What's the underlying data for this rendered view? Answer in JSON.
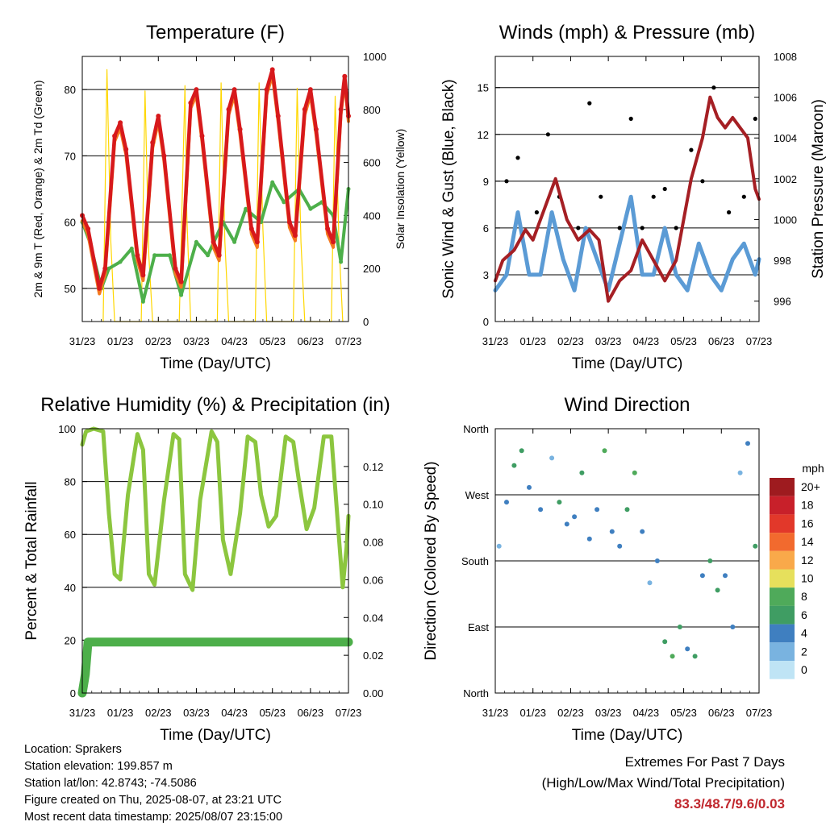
{
  "station": {
    "location": "Location: Sprakers",
    "elevation": "Station elevation: 199.857 m",
    "latlon": "Station lat/lon: 42.8743; -74.5086",
    "created": "Figure created on Thu, 2025-08-07, at 23:21 UTC",
    "recent": "Most recent data timestamp: 2025/08/07 23:15:00"
  },
  "extremes": {
    "title": "Extremes For Past 7 Days",
    "subtitle": "(High/Low/Max Wind/Total Precipitation)",
    "values": "83.3/48.7/9.6/0.03",
    "color": "#c0272d"
  },
  "colors": {
    "temp2m": "#d7191c",
    "temp9m": "#f47a20",
    "dewpoint": "#4daf4a",
    "solar": "#ffd700",
    "gust": "#000000",
    "wind": "#5b9bd5",
    "pressure": "#a51f24",
    "rh": "#8cc63f",
    "precip": "#4daf4a"
  },
  "chart_data": [
    {
      "type": "line",
      "title": "Temperature (F)",
      "xlabel": "Time (Day/UTC)",
      "ylabel": "2m & 9m T (Red, Orange) & 2m Td (Green)",
      "y2label": "Solar Insolation (Yellow)",
      "xticks": [
        "31/23",
        "01/23",
        "02/23",
        "03/23",
        "04/23",
        "05/23",
        "06/23",
        "07/23"
      ],
      "ylim": [
        45,
        85
      ],
      "yticks": [
        50,
        60,
        70,
        80
      ],
      "y2lim": [
        0,
        1000
      ],
      "y2ticks": [
        0,
        200,
        400,
        600,
        800,
        1000
      ],
      "series": [
        {
          "name": "2m T",
          "x": [
            0,
            0.15,
            0.45,
            0.6,
            0.85,
            1,
            1.15,
            1.45,
            1.6,
            1.85,
            2,
            2.15,
            2.45,
            2.6,
            2.85,
            3,
            3.15,
            3.45,
            3.6,
            3.85,
            4,
            4.15,
            4.45,
            4.6,
            4.85,
            5,
            5.15,
            5.45,
            5.6,
            5.85,
            6,
            6.15,
            6.45,
            6.6,
            6.8,
            6.9,
            7
          ],
          "y": [
            61,
            59,
            50,
            53,
            73,
            75,
            71,
            55,
            52,
            72,
            76,
            70,
            53,
            51,
            78,
            80,
            73,
            57,
            55,
            77,
            80,
            74,
            59,
            57,
            80,
            83,
            76,
            60,
            58,
            77,
            80,
            74,
            59,
            57,
            77,
            82,
            76
          ]
        },
        {
          "name": "Dewpoint",
          "x": [
            0,
            0.2,
            0.5,
            0.7,
            1,
            1.3,
            1.6,
            1.9,
            2.3,
            2.6,
            3,
            3.3,
            3.7,
            4,
            4.3,
            4.7,
            5,
            5.3,
            5.7,
            6,
            6.3,
            6.6,
            6.8,
            7
          ],
          "y": [
            60,
            57,
            50,
            53,
            54,
            56,
            48,
            55,
            55,
            49,
            57,
            55,
            60,
            57,
            62,
            60,
            66,
            63,
            65,
            62,
            63,
            61,
            54,
            65
          ]
        },
        {
          "name": "Solar",
          "x": [
            0.55,
            0.65,
            0.75,
            0.85,
            1.55,
            1.65,
            1.75,
            1.85,
            2.55,
            2.7,
            2.75,
            2.85,
            3.55,
            3.65,
            3.75,
            3.85,
            4.55,
            4.65,
            4.75,
            4.85,
            5.55,
            5.65,
            5.75,
            5.85,
            6.55,
            6.65,
            6.75,
            6.85
          ],
          "y": [
            0,
            950,
            300,
            0,
            0,
            870,
            250,
            0,
            0,
            890,
            400,
            0,
            0,
            900,
            300,
            0,
            0,
            900,
            350,
            0,
            0,
            880,
            300,
            0,
            0,
            850,
            300,
            0
          ]
        }
      ]
    },
    {
      "type": "line",
      "title": "Winds (mph) & Pressure (mb)",
      "xlabel": "Time (Day/UTC)",
      "ylabel": "Sonic Wind & Gust (Blue, Black)",
      "y2label": "Station Pressure (Maroon)",
      "xticks": [
        "31/23",
        "01/23",
        "02/23",
        "03/23",
        "04/23",
        "05/23",
        "06/23",
        "07/23"
      ],
      "ylim": [
        0,
        17
      ],
      "yticks": [
        0,
        3,
        6,
        9,
        12,
        15
      ],
      "y2lim": [
        995,
        1008
      ],
      "y2ticks": [
        996,
        998,
        1000,
        1002,
        1004,
        1006,
        1008
      ],
      "series": [
        {
          "name": "Pressure",
          "x": [
            0,
            0.2,
            0.5,
            0.8,
            1,
            1.3,
            1.6,
            1.9,
            2.2,
            2.5,
            2.75,
            3,
            3.3,
            3.6,
            3.9,
            4.2,
            4.5,
            4.8,
            5.2,
            5.5,
            5.7,
            5.9,
            6.1,
            6.3,
            6.5,
            6.7,
            6.9,
            7
          ],
          "y": [
            997,
            998,
            998.5,
            999.5,
            999,
            1000.5,
            1002,
            1000,
            999,
            999.5,
            999,
            996,
            997,
            997.5,
            999,
            998,
            997,
            998,
            1002,
            1004,
            1006,
            1005,
            1004.5,
            1005,
            1004.5,
            1004,
            1001.5,
            1001
          ]
        },
        {
          "name": "Gust",
          "x": [
            0.3,
            0.6,
            1.1,
            1.4,
            1.7,
            2.2,
            2.5,
            2.8,
            3.3,
            3.6,
            3.9,
            4.2,
            4.5,
            4.8,
            5.2,
            5.5,
            5.8,
            6.2,
            6.6,
            6.9
          ],
          "y": [
            9,
            10.5,
            7,
            12,
            8,
            6,
            14,
            8,
            6,
            13,
            6,
            8,
            8.5,
            6,
            11,
            9,
            15,
            7,
            8,
            13
          ]
        },
        {
          "name": "Wind",
          "x": [
            0,
            0.3,
            0.6,
            0.9,
            1.2,
            1.5,
            1.8,
            2.1,
            2.4,
            2.7,
            3,
            3.3,
            3.6,
            3.9,
            4.2,
            4.5,
            4.8,
            5.1,
            5.4,
            5.7,
            6,
            6.3,
            6.6,
            6.9,
            7
          ],
          "y": [
            2,
            3,
            7,
            3,
            3,
            7,
            4,
            2,
            6,
            4,
            2,
            5,
            8,
            3,
            3,
            6,
            3,
            2,
            5,
            3,
            2,
            4,
            5,
            3,
            4
          ]
        }
      ]
    },
    {
      "type": "line",
      "title": "Relative Humidity (%) & Precipitation (in)",
      "xlabel": "Time (Day/UTC)",
      "ylabel": "Percent & Total Rainfall",
      "xticks": [
        "31/23",
        "01/23",
        "02/23",
        "03/23",
        "04/23",
        "05/23",
        "06/23",
        "07/23"
      ],
      "ylim": [
        0,
        100
      ],
      "yticks": [
        0,
        20,
        40,
        60,
        80,
        100
      ],
      "y2lim": [
        0,
        0.14
      ],
      "y2ticks": [
        "0.00",
        "0.02",
        "0.04",
        "0.06",
        "0.08",
        "0.10",
        "0.12"
      ],
      "series": [
        {
          "name": "RH",
          "x": [
            0,
            0.1,
            0.3,
            0.55,
            0.7,
            0.85,
            1,
            1.2,
            1.45,
            1.6,
            1.75,
            1.9,
            2.15,
            2.4,
            2.55,
            2.7,
            2.9,
            3.1,
            3.4,
            3.55,
            3.7,
            3.9,
            4.15,
            4.35,
            4.55,
            4.7,
            4.9,
            5.1,
            5.35,
            5.55,
            5.7,
            5.9,
            6.1,
            6.35,
            6.55,
            6.7,
            6.85,
            6.95,
            7
          ],
          "y": [
            94,
            99,
            100,
            99,
            68,
            45,
            43,
            75,
            98,
            92,
            45,
            41,
            73,
            98,
            96,
            45,
            39,
            73,
            99,
            95,
            58,
            45,
            68,
            97,
            95,
            75,
            63,
            67,
            97,
            95,
            80,
            62,
            70,
            97,
            97,
            68,
            40,
            55,
            67
          ]
        },
        {
          "name": "Precipitation",
          "x": [
            0,
            0.08,
            0.15,
            7
          ],
          "y": [
            0,
            0.01,
            0.027,
            0.027
          ]
        }
      ]
    },
    {
      "type": "scatter",
      "title": "Wind Direction",
      "xlabel": "Time (Day/UTC)",
      "ylabel": "Direction (Colored By Speed)",
      "xticks": [
        "31/23",
        "01/23",
        "02/23",
        "03/23",
        "04/23",
        "05/23",
        "06/23",
        "07/23"
      ],
      "yticks": [
        "North",
        "East",
        "South",
        "West",
        "North"
      ],
      "ylim": [
        0,
        360
      ],
      "legend_title": "mph",
      "legend_labels": [
        "20+",
        "18",
        "16",
        "14",
        "12",
        "10",
        "8",
        "6",
        "4",
        "2",
        "0"
      ],
      "legend_colors": [
        "#9e1b1f",
        "#c8202a",
        "#e2382a",
        "#f26a2e",
        "#f9a94a",
        "#e6e05c",
        "#4faa5a",
        "#3f9d63",
        "#3f7fc0",
        "#79b3e0",
        "#bfe4f5"
      ],
      "series": [
        {
          "name": "Direction",
          "x": [
            0.1,
            0.3,
            0.5,
            0.7,
            0.9,
            1.2,
            1.5,
            1.7,
            1.9,
            2.1,
            2.3,
            2.5,
            2.7,
            2.9,
            3.1,
            3.3,
            3.5,
            3.7,
            3.9,
            4.1,
            4.3,
            4.5,
            4.7,
            4.9,
            5.1,
            5.3,
            5.5,
            5.7,
            5.9,
            6.1,
            6.3,
            6.5,
            6.7,
            6.9
          ],
          "y": [
            200,
            260,
            310,
            330,
            280,
            250,
            320,
            260,
            230,
            240,
            300,
            210,
            250,
            330,
            220,
            200,
            250,
            300,
            220,
            150,
            180,
            70,
            50,
            90,
            60,
            50,
            160,
            180,
            140,
            160,
            90,
            300,
            340,
            200
          ],
          "speed": [
            2,
            3,
            5,
            6,
            3,
            4,
            2,
            5,
            3,
            4,
            6,
            4,
            3,
            7,
            3,
            4,
            5,
            7,
            3,
            2,
            3,
            6,
            7,
            5,
            4,
            6,
            3,
            6,
            5,
            4,
            3,
            2,
            4,
            6
          ]
        }
      ]
    }
  ]
}
